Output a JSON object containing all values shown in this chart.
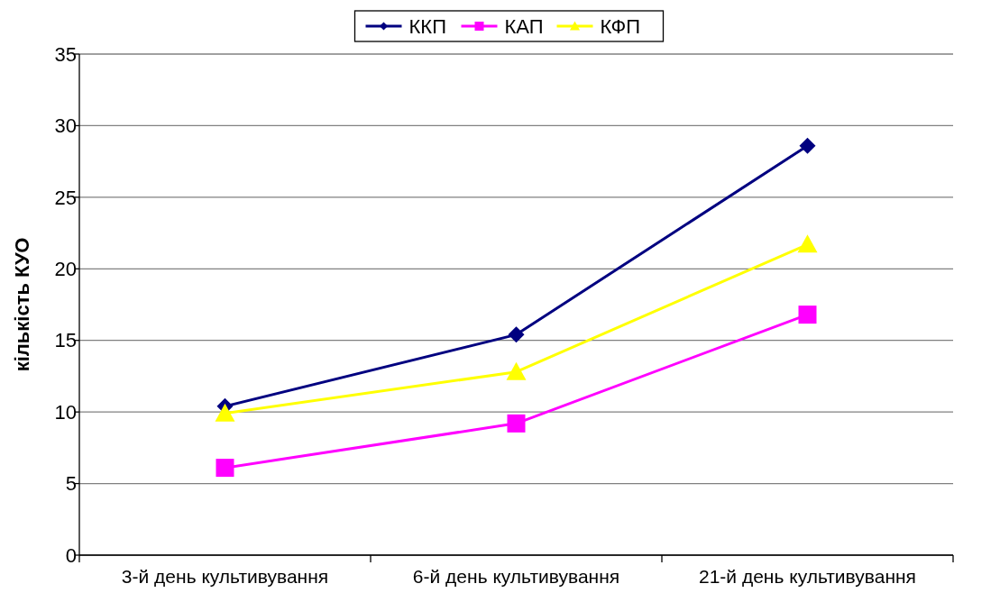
{
  "chart_data": {
    "type": "line",
    "ylabel": "кількість КУО",
    "categories": [
      "3-й день культивування",
      "6-й день культивування",
      "21-й день культивування"
    ],
    "series": [
      {
        "name": "ККП",
        "color": "#000080",
        "marker": "diamond",
        "values": [
          10.4,
          15.4,
          28.6
        ]
      },
      {
        "name": "КАП",
        "color": "#ff00ff",
        "marker": "square",
        "values": [
          6.1,
          9.2,
          16.8
        ]
      },
      {
        "name": "КФП",
        "color": "#ffff00",
        "marker": "triangle",
        "values": [
          9.9,
          12.8,
          21.7
        ]
      }
    ],
    "ylim": [
      0,
      35
    ],
    "yticks": [
      0,
      5,
      10,
      15,
      20,
      25,
      30,
      35
    ],
    "grid": "y",
    "legend": "top",
    "line_style": "solid"
  }
}
